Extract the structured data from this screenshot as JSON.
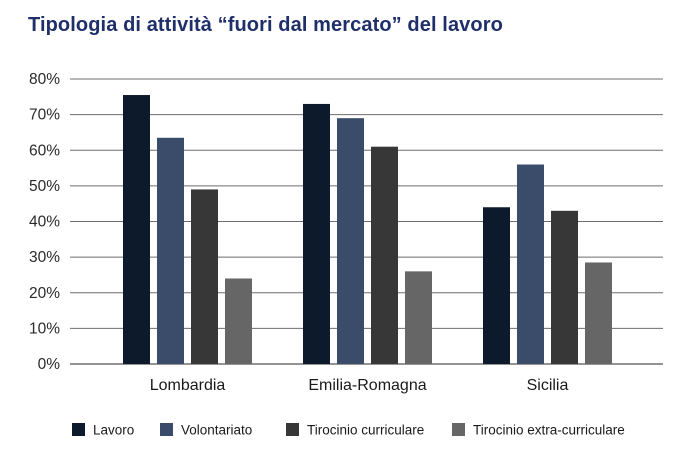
{
  "chart_data": {
    "type": "bar",
    "title": "Tipologia di attività “fuori dal mercato” del lavoro",
    "categories": [
      "Lombardia",
      "Emilia-Romagna",
      "Sicilia"
    ],
    "series": [
      {
        "name": "Lavoro",
        "color": "#0d1a2b",
        "values": [
          75.5,
          73.0,
          44.0
        ]
      },
      {
        "name": "Volontariato",
        "color": "#3b4c6b",
        "values": [
          63.5,
          69.0,
          56.0
        ]
      },
      {
        "name": "Tirocinio curriculare",
        "color": "#373737",
        "values": [
          49.0,
          61.0,
          43.0
        ]
      },
      {
        "name": "Tirocinio extra-curriculare",
        "color": "#666666",
        "values": [
          24.0,
          26.0,
          28.5
        ]
      }
    ],
    "yticks": [
      "0%",
      "10%",
      "20%",
      "30%",
      "40%",
      "50%",
      "60%",
      "70%",
      "80%"
    ],
    "ylim": [
      0,
      80
    ],
    "grid": true,
    "legend_position": "bottom"
  }
}
